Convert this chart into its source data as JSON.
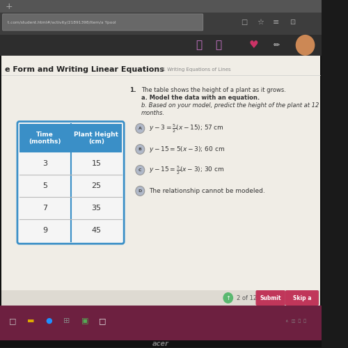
{
  "outer_bg": "#1a1a1a",
  "browser_topbar_bg": "#3d3d3d",
  "browser_nav_bg": "#2d2d2d",
  "url_text": "t.com/student.html#/activity/21891398/item/a Ypool",
  "content_bg": "#e8e5de",
  "white_area_bg": "#f0ede6",
  "page_title_bold": "e Form and Writing Linear Equations",
  "page_subtitle": "11 Writing Equations of Lines",
  "question_line1": "The table shows the height of a plant as it grows.",
  "question_line2": "a. Model the data with an equation.",
  "question_line3": "b. Based on your model, predict the height of the plant at 12",
  "question_line4": "months.",
  "table_header_bg": "#3a8fc7",
  "table_header_color": "#ffffff",
  "table_border_color": "#3a8fc7",
  "table_data": [
    [
      3,
      15
    ],
    [
      5,
      25
    ],
    [
      7,
      35
    ],
    [
      9,
      45
    ]
  ],
  "option_circle_color": "#b0b8c8",
  "option_A_eq": "y-3=\\frac{5}{2}(x-15)",
  "option_A_suffix": "; 57 cm",
  "option_B_text": "y - 15 = 5(x -3); 60 cm",
  "option_C_eq": "y-15=\\frac{5}{2}(x-3)",
  "option_C_suffix": "; 30 cm",
  "option_D_text": "The relationship cannot be modeled.",
  "taskbar_bg": "#6d2040",
  "nav_text": "2 of 12",
  "btn1_text": "Submit",
  "btn2_text": "Skip a",
  "btn_color": "#c0365a",
  "nav_icon_color": "#5ab870",
  "acer_text": "acer"
}
